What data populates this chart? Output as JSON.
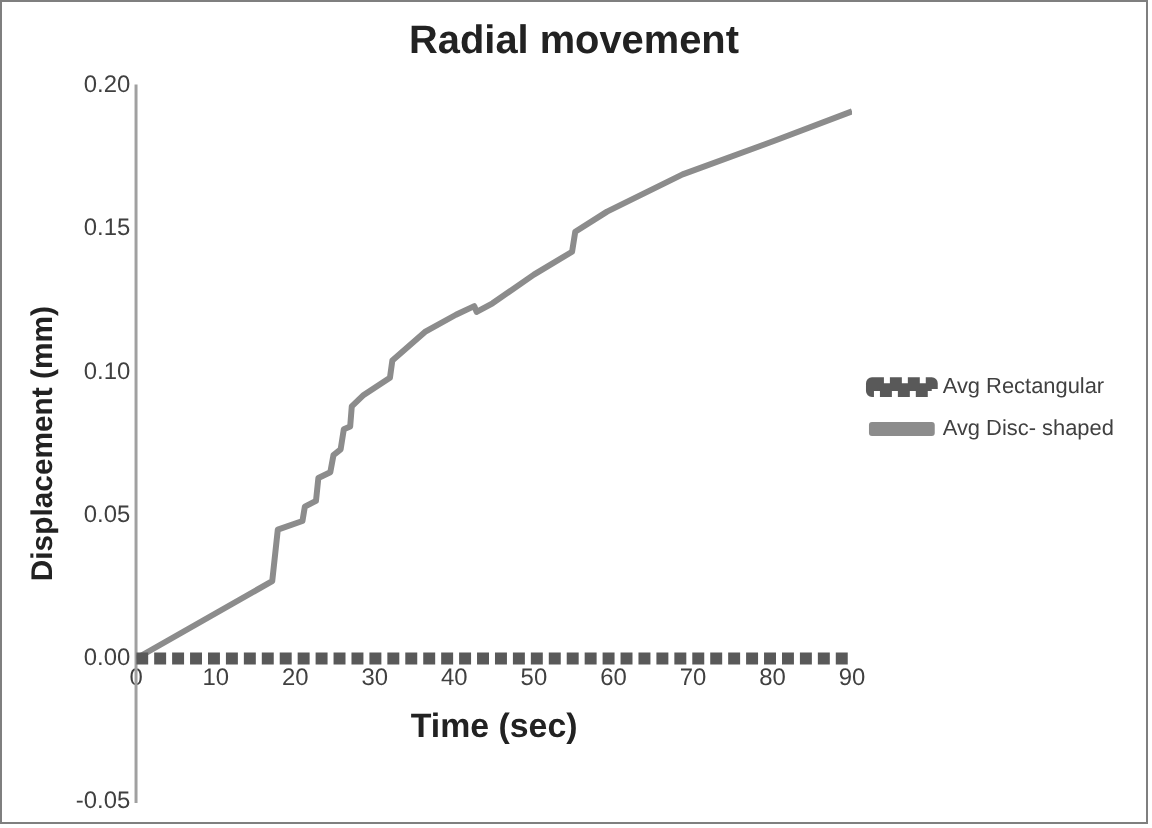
{
  "chart_data": {
    "type": "line",
    "title": "Radial movement",
    "xlabel": "Time (sec)",
    "ylabel": "Displacement (mm)",
    "xlim": [
      0,
      90
    ],
    "xticks": [
      0,
      10,
      20,
      30,
      40,
      50,
      60,
      70,
      80,
      90
    ],
    "ylim": [
      -0.05,
      0.2
    ],
    "yticks": [
      {
        "value": -0.05,
        "label": "-0.05"
      },
      {
        "value": 0,
        "label": "0.00"
      },
      {
        "value": 0.05,
        "label": "0.05"
      },
      {
        "value": 0.1,
        "label": "0.10"
      },
      {
        "value": 0.15,
        "label": "0.15"
      },
      {
        "value": 0.2,
        "label": "0.20"
      }
    ],
    "grid": false,
    "legend": "right",
    "marker": "none",
    "series": [
      {
        "name": "Avg Rectangular",
        "color": "#595959",
        "line_style": "dashed",
        "x": [
          0,
          10,
          20,
          30,
          40,
          50,
          60,
          70,
          80,
          90
        ],
        "values": [
          0,
          0,
          0,
          0,
          0,
          0,
          0,
          0,
          0,
          0
        ]
      },
      {
        "name": "Avg Disc- shaped",
        "color": "#8c8c8c",
        "line_style": "solid",
        "x": [
          0,
          17.1,
          17.8,
          20.9,
          21.2,
          22.6,
          22.9,
          24.4,
          24.8,
          25.7,
          26.1,
          26.9,
          27.1,
          28.6,
          31.9,
          32.2,
          36.3,
          40.2,
          42.5,
          42.8,
          44.8,
          50,
          54.8,
          55.2,
          59.2,
          68.7,
          80.5,
          90
        ],
        "values": [
          0,
          0.027,
          0.045,
          0.048,
          0.053,
          0.055,
          0.063,
          0.065,
          0.071,
          0.073,
          0.08,
          0.081,
          0.088,
          0.092,
          0.098,
          0.104,
          0.114,
          0.12,
          0.123,
          0.121,
          0.124,
          0.134,
          0.142,
          0.149,
          0.156,
          0.169,
          0.181,
          0.191
        ]
      }
    ]
  }
}
